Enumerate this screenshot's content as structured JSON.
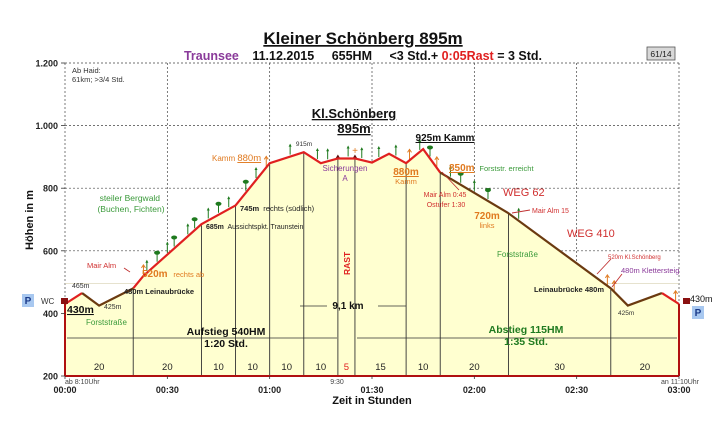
{
  "header": {
    "title": "Kleiner Schönberg 895m",
    "subtitle_place": "Traunsee",
    "subtitle_date": "11.12.2015",
    "subtitle_hm": "655HM",
    "subtitle_time_a": "<3 Std.+ ",
    "subtitle_rest": "0:05Rast",
    "subtitle_time_b": " = 3 Std.",
    "badge": "61/14"
  },
  "colors": {
    "profile_up": "#e02020",
    "profile_down": "#6b3a10",
    "fill": "#ffffd0",
    "accent_orange": "#e07a20",
    "accent_green": "#3a9a3a",
    "accent_purple": "#8a3a9a",
    "accent_red": "#d03030",
    "dark_green": "#1f7a1f",
    "axis_red": "#b01010",
    "parking_bg": "#a8c8f0",
    "parking_fg": "#1a3a8a"
  },
  "chart_data": {
    "type": "area",
    "title": "Kleiner Schönberg 895m",
    "xlabel": "Zeit in Stunden",
    "ylabel": "Höhen in m",
    "ylim": [
      200,
      1200
    ],
    "xlim_minutes": [
      0,
      180
    ],
    "y_ticks": [
      "200",
      "400",
      "600",
      "800",
      "1.000",
      "1.200"
    ],
    "y_tick_values": [
      200,
      400,
      600,
      800,
      1000,
      1200
    ],
    "x_ticks": [
      "00:00",
      "00:30",
      "01:00",
      "01:30",
      "02:00",
      "02:30",
      "03:00"
    ],
    "x_tick_minutes": [
      0,
      30,
      60,
      90,
      120,
      150,
      180
    ],
    "grid": "dashed",
    "profile": [
      {
        "min": 0,
        "m": 430
      },
      {
        "min": 5,
        "m": 465
      },
      {
        "min": 10,
        "m": 425
      },
      {
        "min": 20,
        "m": 480
      },
      {
        "min": 23,
        "m": 520
      },
      {
        "min": 40,
        "m": 685
      },
      {
        "min": 50,
        "m": 745
      },
      {
        "min": 60,
        "m": 880
      },
      {
        "min": 70,
        "m": 915
      },
      {
        "min": 75,
        "m": 880
      },
      {
        "min": 80,
        "m": 895
      },
      {
        "min": 85,
        "m": 895
      },
      {
        "min": 90,
        "m": 882
      },
      {
        "min": 95,
        "m": 910
      },
      {
        "min": 100,
        "m": 880
      },
      {
        "min": 105,
        "m": 925
      },
      {
        "min": 110,
        "m": 850
      },
      {
        "min": 130,
        "m": 720
      },
      {
        "min": 160,
        "m": 480
      },
      {
        "min": 165,
        "m": 425
      },
      {
        "min": 175,
        "m": 465
      },
      {
        "min": 180,
        "m": 430
      }
    ],
    "segment_minutes": [
      0,
      20,
      40,
      50,
      60,
      70,
      80,
      85,
      100,
      110,
      130,
      160,
      180
    ],
    "segment_labels": [
      "20",
      "20",
      "10",
      "10",
      "10",
      "10",
      "5",
      "15",
      "10",
      "20",
      "30",
      "20"
    ],
    "distance": "9,1 km",
    "ascent_label": "Aufstieg 540HM",
    "ascent_time": "1:20 Std.",
    "descent_label": "Abstieg 115HM",
    "descent_time": "1:35 Std.",
    "start_time": "ab 8:10Uhr",
    "end_time": "an 11:10Uhr",
    "rest_time": "9:30",
    "rest_label": "RAST"
  },
  "annotations": {
    "ab_haid_1": "Ab Haid:",
    "ab_haid_2": "61km; >3/4 Std.",
    "summit_name": "Kl.Schönberg",
    "summit_height": "895m",
    "kamm_925": "925m Kamm",
    "p_left": "P",
    "p_right": "P",
    "wc": "WC",
    "start_430": "430m",
    "end_430": "430m",
    "m465": "465m",
    "m425_left": "425m",
    "forststrasse_left": "Forststraße",
    "leinau_up": "480m Leinaubrücke",
    "mair_alm": "Mair Alm",
    "m520": "520m",
    "rechts_ab": "rechts ab",
    "bergwald_1": "steiler Bergwald",
    "bergwald_2": "(Buchen, Fichten)",
    "m685": "685m",
    "aussicht": "Aussichtspkt. Traunstein",
    "m745": "745m",
    "rechts_suedlich": "rechts (südlich)",
    "kamm_left": "Kamm ",
    "m880_left": "880m",
    "m915": "915m",
    "sicherungen": "Sicherungen",
    "sich_a": "A",
    "m880_mid": "880m",
    "kamm_mid": "Kamm",
    "m850": "850m",
    "forststr_erreicht": "Forststr. erreicht",
    "mair_alm_045": "Mair Alm 0:45",
    "ostufer": "Ostufer 1:30",
    "weg62": "WEG 62",
    "m720": "720m",
    "links": "links",
    "mair_alm_15": "Mair Alm 15",
    "weg410": "WEG 410",
    "forststrasse_right": "Forststraße",
    "m520_kl": "520m Kl.Schönberg",
    "m480_kletter": "480m Klettersteig",
    "leinau_down": "Leinaubrücke 480m",
    "m425_right": "425m"
  }
}
